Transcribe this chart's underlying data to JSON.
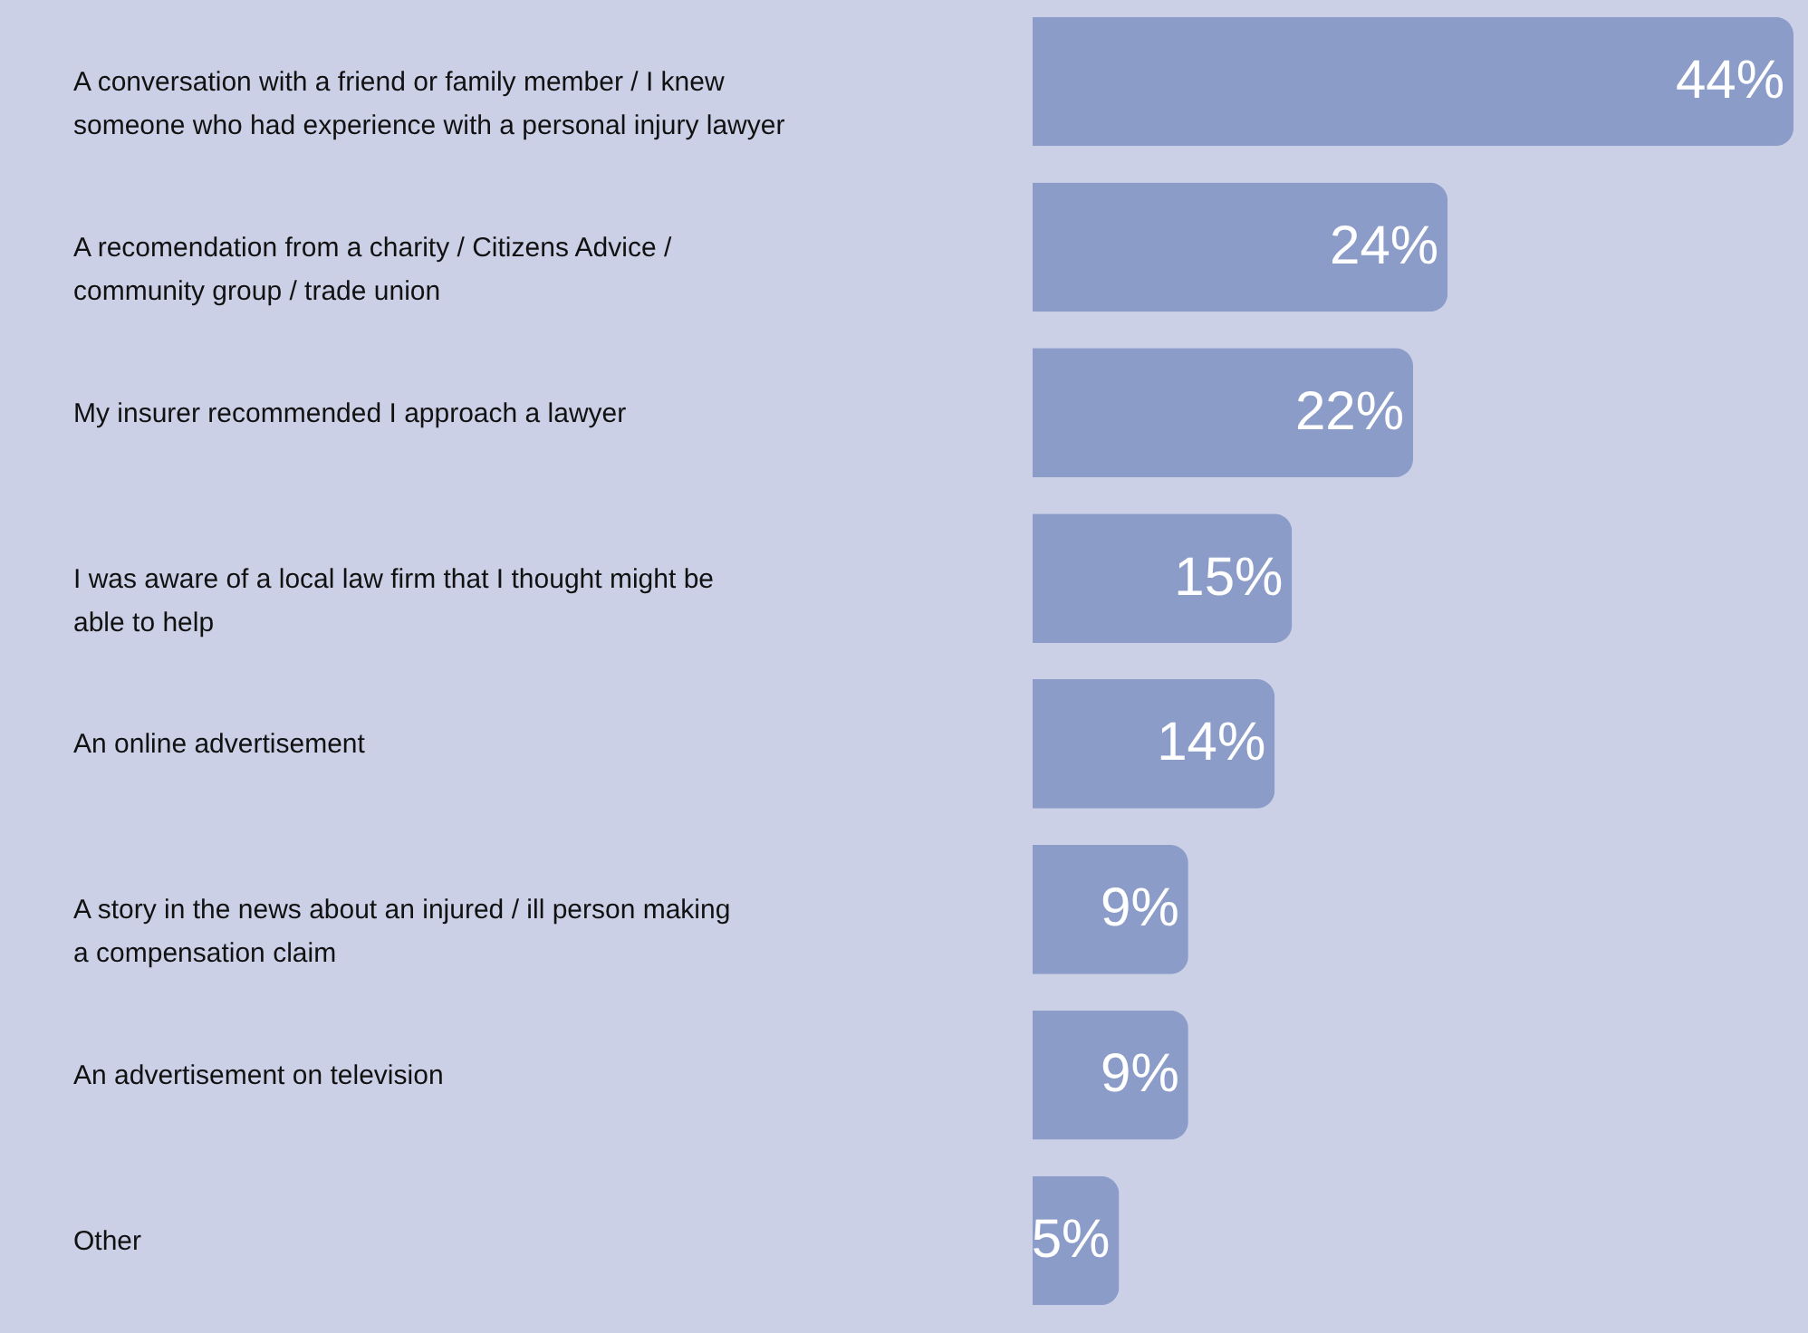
{
  "chart_data": {
    "type": "bar",
    "orientation": "horizontal",
    "categories": [
      "A conversation with a friend or family member / I knew someone who had experience with a personal injury lawyer",
      "A recomendation from a charity / Citizens Advice / community group / trade union",
      "My insurer recommended I approach a lawyer",
      "I was aware of a local law firm that I thought might be able to help",
      "An online advertisement",
      "A story in the news about an injured / ill person making a compensation claim",
      "An advertisement on television",
      "Other"
    ],
    "values": [
      44,
      24,
      22,
      15,
      14,
      9,
      9,
      5
    ],
    "value_labels": [
      "44%",
      "24%",
      "22%",
      "15%",
      "14%",
      "9%",
      "9%",
      "5%"
    ],
    "color": "#8b9cc8",
    "grid": false
  }
}
